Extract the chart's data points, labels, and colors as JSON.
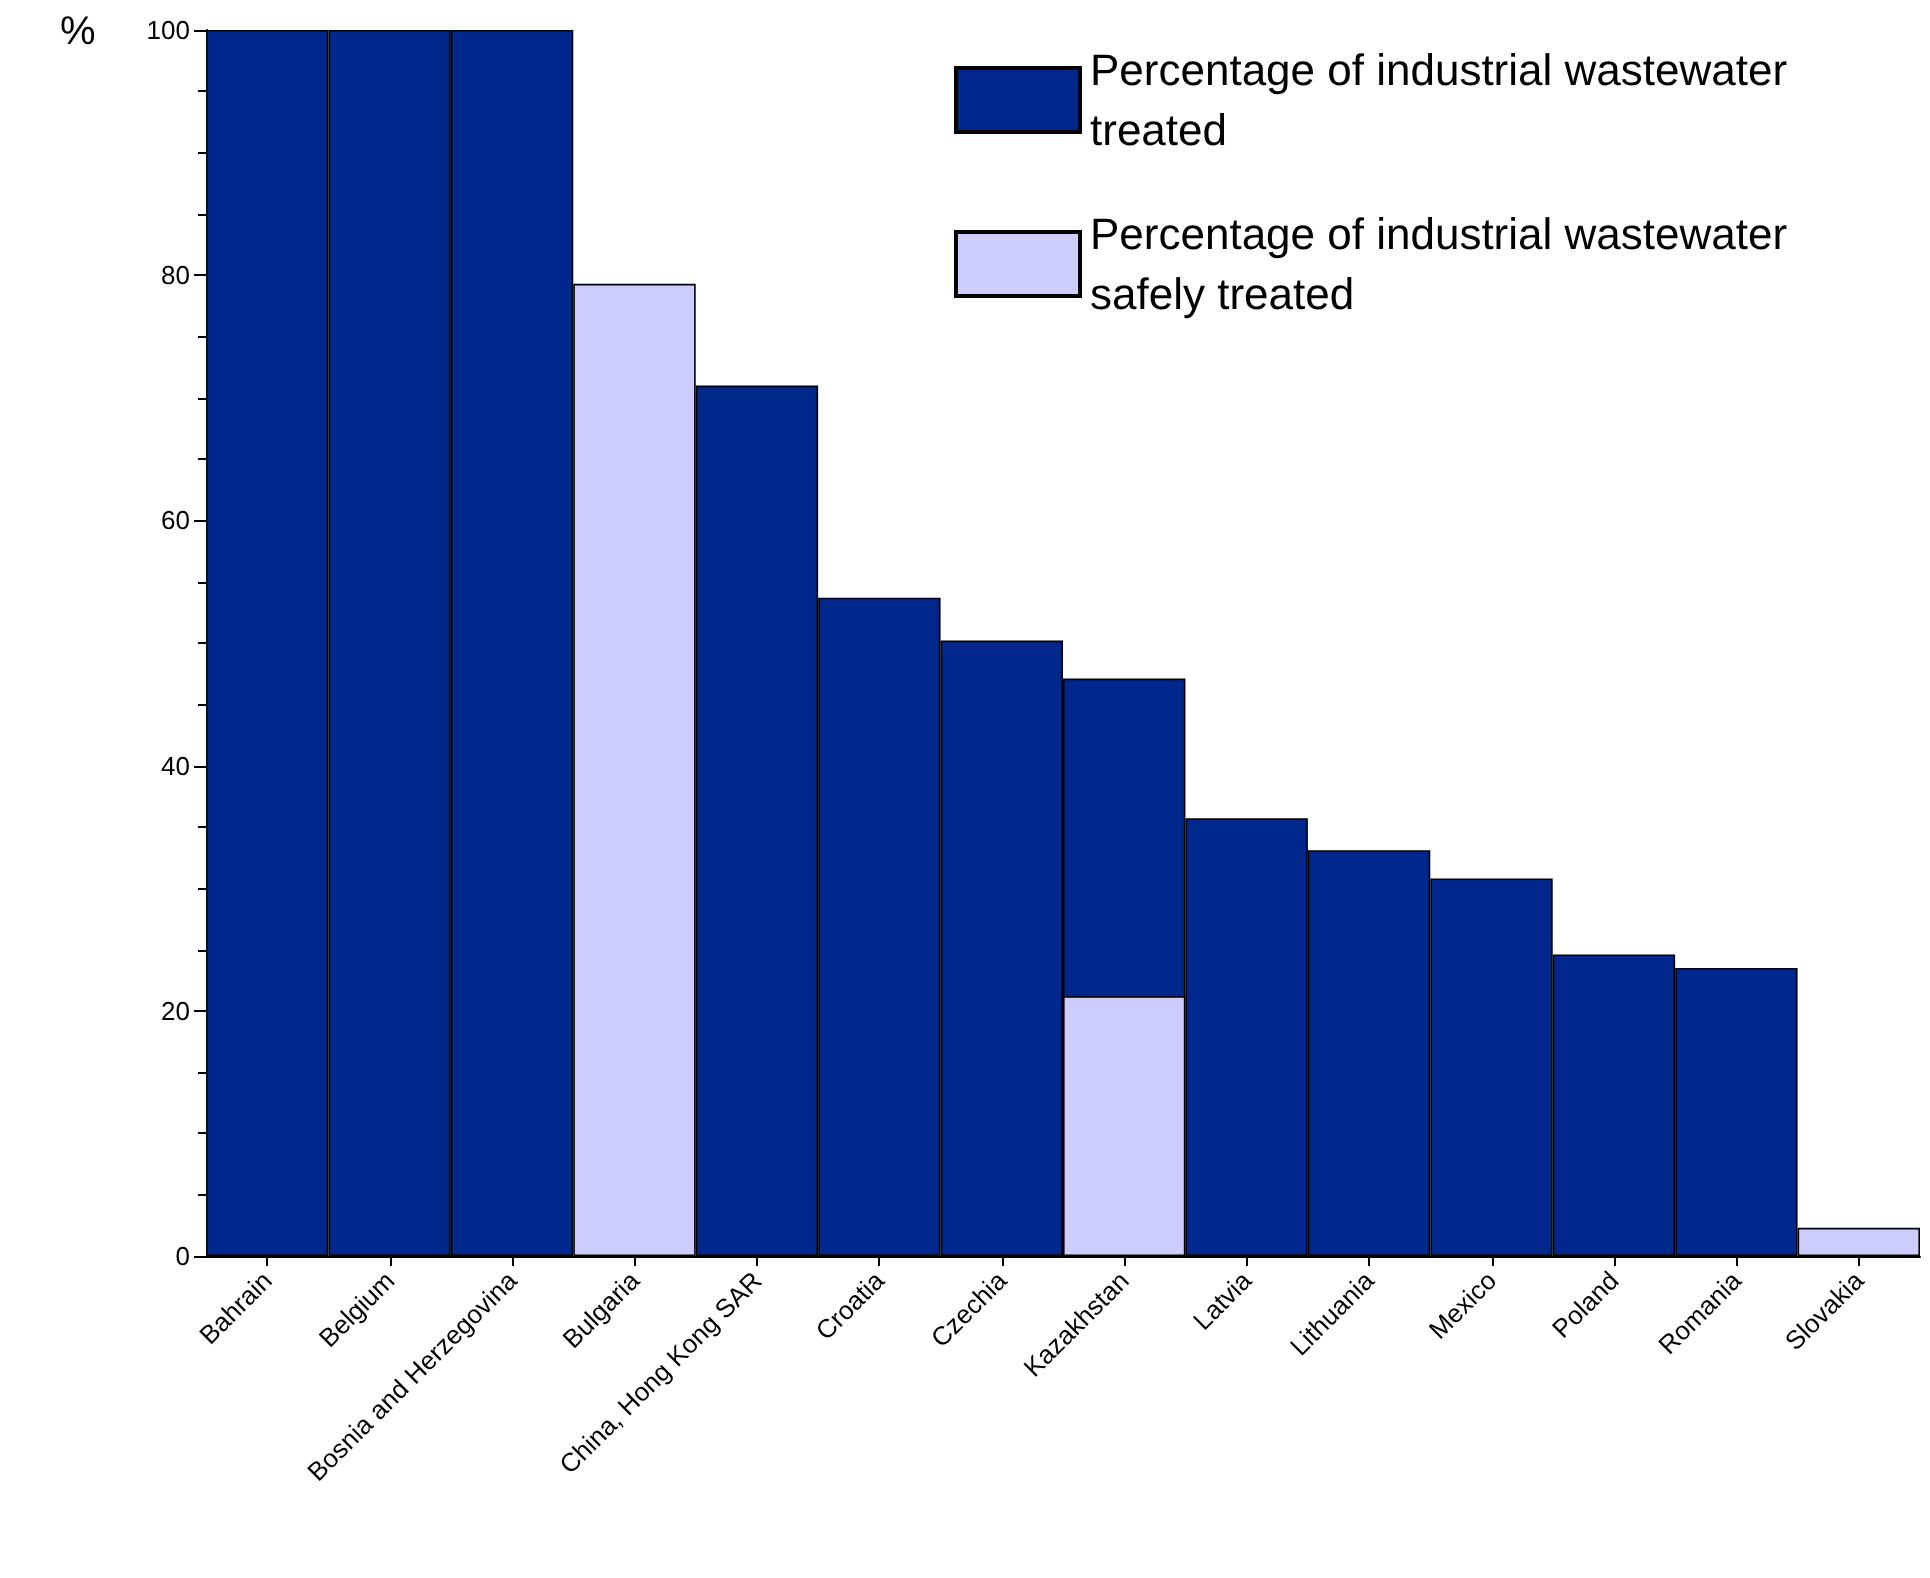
{
  "chart_data": {
    "type": "bar",
    "ylabel": "%",
    "categories": [
      "Bahrain",
      "Belgium",
      "Bosnia and Herzegovina",
      "Bulgaria",
      "China, Hong Kong SAR",
      "Croatia",
      "Czechia",
      "Kazakhstan",
      "Latvia",
      "Lithuania",
      "Mexico",
      "Poland",
      "Romania",
      "Slovakia"
    ],
    "series": [
      {
        "name": "Percentage of industrial wastewater treated",
        "color": "#00288c",
        "values": [
          100,
          100,
          100,
          null,
          71.0,
          53.7,
          50.2,
          47.1,
          35.7,
          33.1,
          30.8,
          24.6,
          23.5,
          null
        ]
      },
      {
        "name": "Percentage of industrial wastewater safely treated",
        "color": "#ccccff",
        "values": [
          null,
          null,
          null,
          79.3,
          null,
          null,
          null,
          21.2,
          null,
          null,
          null,
          null,
          null,
          2.3
        ]
      }
    ],
    "ylim": [
      0,
      100
    ],
    "yticks": [
      0,
      20,
      40,
      60,
      80,
      100
    ],
    "grid": false,
    "legend": "top right"
  }
}
